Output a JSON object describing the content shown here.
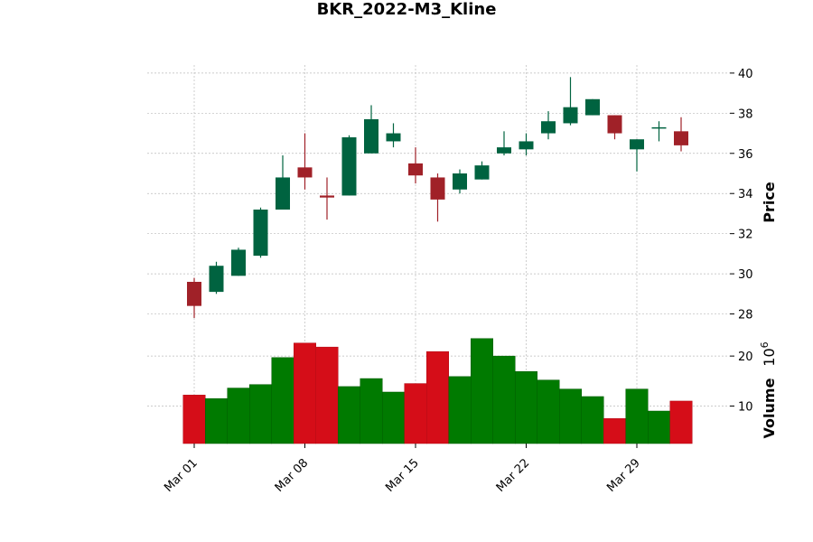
{
  "chart_data": {
    "type": "candlestick",
    "title": "BKR_2022-M3_Kline",
    "price_axis": {
      "label": "Price",
      "ylim": [
        26.9,
        40.4
      ],
      "ticks": [
        28,
        30,
        32,
        34,
        36,
        38,
        40
      ]
    },
    "volume_axis": {
      "label": "Volume",
      "multiplier": "10^6",
      "ylim": [
        2.5,
        24.0
      ],
      "ticks": [
        10,
        20
      ]
    },
    "x_ticks": [
      {
        "label": "Mar 01",
        "index": 0
      },
      {
        "label": "Mar 08",
        "index": 5
      },
      {
        "label": "Mar 15",
        "index": 10
      },
      {
        "label": "Mar 22",
        "index": 15
      },
      {
        "label": "Mar 29",
        "index": 20
      }
    ],
    "grid": true,
    "colors": {
      "up_candle": "#006340",
      "down_candle": "#a02128",
      "up_volume": "#007a00",
      "down_volume": "#d50d18",
      "grid": "#bbbbbb"
    },
    "candles": [
      {
        "date": "2022-03-01",
        "open": 29.6,
        "high": 29.8,
        "low": 27.8,
        "close": 28.4
      },
      {
        "date": "2022-03-02",
        "open": 29.1,
        "high": 30.6,
        "low": 29.0,
        "close": 30.4
      },
      {
        "date": "2022-03-03",
        "open": 29.9,
        "high": 31.3,
        "low": 29.9,
        "close": 31.2
      },
      {
        "date": "2022-03-04",
        "open": 30.9,
        "high": 33.3,
        "low": 30.8,
        "close": 33.2
      },
      {
        "date": "2022-03-07",
        "open": 33.2,
        "high": 35.9,
        "low": 33.2,
        "close": 34.8
      },
      {
        "date": "2022-03-08",
        "open": 35.3,
        "high": 37.0,
        "low": 34.2,
        "close": 34.8
      },
      {
        "date": "2022-03-09",
        "open": 33.9,
        "high": 34.8,
        "low": 32.7,
        "close": 33.8
      },
      {
        "date": "2022-03-10",
        "open": 33.9,
        "high": 36.9,
        "low": 33.9,
        "close": 36.8
      },
      {
        "date": "2022-03-11",
        "open": 36.0,
        "high": 38.4,
        "low": 36.0,
        "close": 37.7
      },
      {
        "date": "2022-03-14",
        "open": 36.6,
        "high": 37.5,
        "low": 36.3,
        "close": 37.0
      },
      {
        "date": "2022-03-15",
        "open": 35.5,
        "high": 36.3,
        "low": 34.5,
        "close": 34.9
      },
      {
        "date": "2022-03-16",
        "open": 34.8,
        "high": 35.0,
        "low": 32.6,
        "close": 33.7
      },
      {
        "date": "2022-03-17",
        "open": 34.2,
        "high": 35.2,
        "low": 34.0,
        "close": 35.0
      },
      {
        "date": "2022-03-18",
        "open": 34.7,
        "high": 35.6,
        "low": 34.7,
        "close": 35.4
      },
      {
        "date": "2022-03-21",
        "open": 36.0,
        "high": 37.1,
        "low": 35.9,
        "close": 36.3
      },
      {
        "date": "2022-03-22",
        "open": 36.2,
        "high": 37.0,
        "low": 35.9,
        "close": 36.6
      },
      {
        "date": "2022-03-23",
        "open": 37.0,
        "high": 38.1,
        "low": 36.7,
        "close": 37.6
      },
      {
        "date": "2022-03-24",
        "open": 37.5,
        "high": 39.8,
        "low": 37.4,
        "close": 38.3
      },
      {
        "date": "2022-03-25",
        "open": 37.9,
        "high": 38.7,
        "low": 37.9,
        "close": 38.7
      },
      {
        "date": "2022-03-28",
        "open": 37.9,
        "high": 37.9,
        "low": 36.7,
        "close": 37.0
      },
      {
        "date": "2022-03-29",
        "open": 36.2,
        "high": 36.7,
        "low": 35.1,
        "close": 36.7
      },
      {
        "date": "2022-03-30",
        "open": 37.3,
        "high": 37.6,
        "low": 36.6,
        "close": 37.3
      },
      {
        "date": "2022-03-31",
        "open": 37.1,
        "high": 37.8,
        "low": 36.1,
        "close": 36.4
      }
    ],
    "volumes": [
      12.2,
      11.5,
      13.6,
      14.3,
      19.7,
      22.6,
      21.8,
      13.9,
      15.5,
      12.8,
      14.5,
      20.9,
      15.9,
      23.5,
      20.0,
      16.9,
      15.2,
      13.4,
      11.9,
      7.5,
      13.4,
      9.0,
      11.0
    ]
  }
}
